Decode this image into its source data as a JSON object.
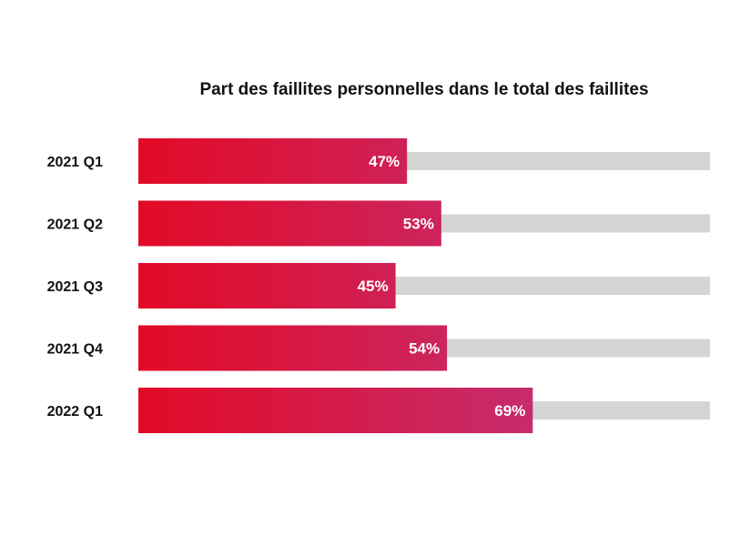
{
  "chart_data": {
    "type": "bar",
    "orientation": "horizontal",
    "title": "Part des faillites personnelles dans le total des faillites",
    "categories": [
      "2021 Q1",
      "2021 Q2",
      "2021 Q3",
      "2021 Q4",
      "2022 Q1"
    ],
    "values": [
      47,
      53,
      45,
      54,
      69
    ],
    "value_labels": [
      "47%",
      "53%",
      "45%",
      "54%",
      "69%"
    ],
    "unit": "%",
    "xlim": [
      0,
      100
    ],
    "grid": false,
    "legend": "none",
    "colors": {
      "bar_gradient_start": "#e30a26",
      "bar_gradient_end": "#b83b8e",
      "track": "#d5d5d5",
      "value_text": "#ffffff",
      "label_text": "#111111"
    }
  }
}
